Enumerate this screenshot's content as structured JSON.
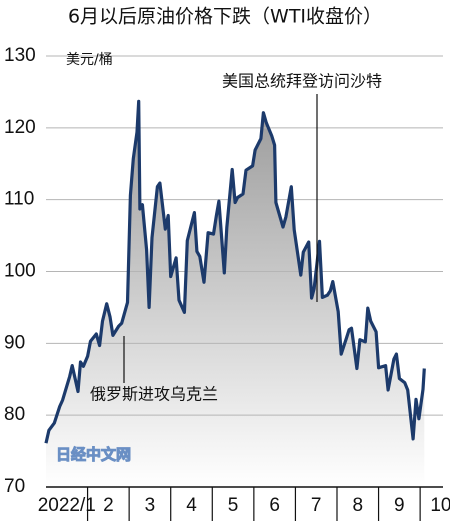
{
  "chart_data": {
    "type": "line",
    "title": "6月以后原油价格下跌（WTI收盘价）",
    "y_label": "美元/桶",
    "annotations": [
      "美国总统拜登访问沙特",
      "俄罗斯进攻乌克兰"
    ],
    "watermark": "日经中文网",
    "series": [
      {
        "color": "#1c3a6b",
        "x": [
          1.0,
          1.07,
          1.2,
          1.33,
          1.4,
          1.57,
          1.63,
          1.77,
          1.83,
          1.9,
          2.0,
          2.07,
          2.21,
          2.29,
          2.36,
          2.46,
          2.54,
          2.61,
          2.75,
          2.82,
          2.96,
          3.03,
          3.1,
          3.19,
          3.23,
          3.26,
          3.32,
          3.42,
          3.48,
          3.55,
          3.68,
          3.74,
          3.87,
          3.94,
          4.0,
          4.13,
          4.2,
          4.33,
          4.4,
          4.57,
          4.63,
          4.7,
          4.8,
          4.9,
          5.03,
          5.1,
          5.16,
          5.29,
          5.35,
          5.48,
          5.55,
          5.61,
          5.74,
          5.81,
          5.97,
          6.03,
          6.17,
          6.23,
          6.3,
          6.43,
          6.5,
          6.53,
          6.7,
          6.77,
          6.9,
          6.97,
          7.13,
          7.19,
          7.32,
          7.39,
          7.45,
          7.58,
          7.65,
          7.77,
          7.84,
          7.9,
          8.03,
          8.1,
          8.23,
          8.29,
          8.35,
          8.48,
          8.55,
          8.68,
          8.74,
          8.81,
          8.94,
          9.0,
          9.17,
          9.23,
          9.37,
          9.43,
          9.5,
          9.63,
          9.7,
          9.83,
          9.9,
          9.97,
          10.07,
          10.1
        ],
        "values": [
          76.1,
          77.9,
          78.9,
          81.2,
          82.1,
          85.4,
          86.9,
          83.3,
          87.4,
          86.8,
          88.2,
          90.3,
          91.3,
          89.7,
          93.1,
          95.5,
          93.7,
          91.1,
          92.4,
          92.8,
          95.7,
          110.6,
          115.7,
          119.4,
          123.7,
          108.7,
          109.3,
          103.0,
          95.0,
          104.7,
          111.8,
          112.3,
          105.9,
          107.8,
          99.3,
          101.9,
          96.0,
          94.3,
          104.3,
          108.2,
          102.8,
          102.1,
          98.5,
          105.4,
          105.2,
          107.8,
          109.8,
          99.8,
          106.1,
          114.2,
          109.6,
          110.3,
          110.8,
          114.1,
          114.7,
          116.9,
          118.5,
          122.1,
          120.7,
          118.9,
          117.6,
          109.6,
          106.2,
          107.6,
          111.8,
          105.8,
          99.5,
          102.7,
          104.1,
          96.3,
          97.6,
          104.2,
          96.4,
          96.7,
          97.3,
          98.6,
          94.4,
          88.5,
          90.8,
          91.9,
          92.1,
          86.5,
          90.5,
          90.2,
          94.9,
          93.1,
          91.6,
          86.6,
          86.9,
          83.5,
          87.8,
          88.5,
          85.1,
          84.5,
          83.5,
          76.7,
          82.2,
          79.5,
          83.6,
          86.5
        ]
      }
    ],
    "xlim": [
      1,
      10.55
    ],
    "xticks": [
      {
        "value": 1.5,
        "label": "2022/1"
      },
      2.5,
      3.5,
      4.5,
      5.5,
      6.5,
      7.5,
      8.5,
      9.5,
      10.5
    ],
    "xtick_labels": [
      "2022/1",
      "2",
      "3",
      "4",
      "5",
      "6",
      "7",
      "8",
      "9",
      "10"
    ],
    "ylim": [
      70,
      130
    ],
    "yticks": [
      70,
      80,
      90,
      100,
      110,
      120,
      130
    ],
    "grid": true
  }
}
